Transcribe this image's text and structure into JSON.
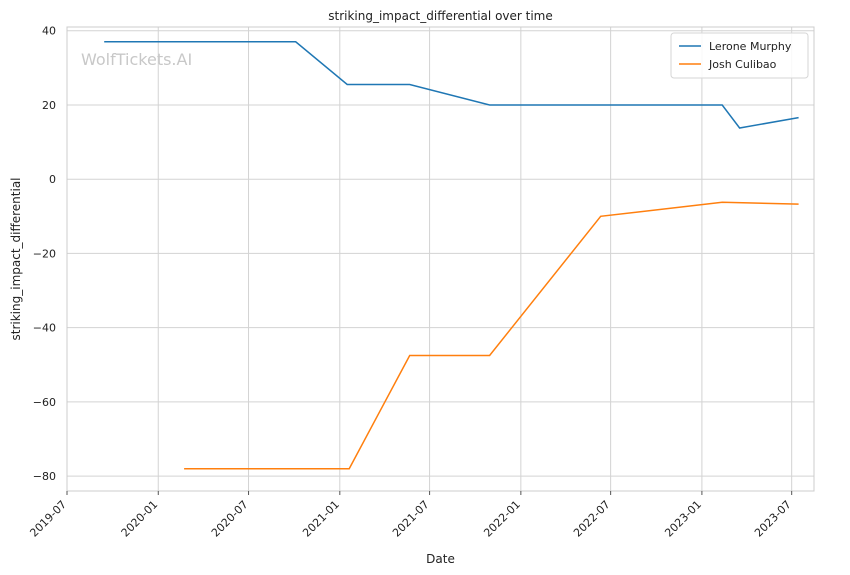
{
  "chart_data": {
    "type": "line",
    "title": "striking_impact_differential over time",
    "xlabel": "Date",
    "ylabel": "striking_impact_differential",
    "watermark": "WolfTickets.AI",
    "ylim": [
      -84,
      41
    ],
    "xlim": [
      "2019-07-01",
      "2023-08-15"
    ],
    "x_ticks": [
      "2019-07",
      "2020-01",
      "2020-07",
      "2021-01",
      "2021-07",
      "2022-01",
      "2022-07",
      "2023-01",
      "2023-07"
    ],
    "y_ticks": [
      -80,
      -60,
      -40,
      -20,
      0,
      20,
      40
    ],
    "grid": true,
    "legend_position": "top-right",
    "series": [
      {
        "name": "Lerone Murphy",
        "color": "#1f77b4",
        "points": [
          {
            "x": "2019-09-14",
            "y": 37
          },
          {
            "x": "2020-10-04",
            "y": 37
          },
          {
            "x": "2021-01-16",
            "y": 25.5
          },
          {
            "x": "2021-05-22",
            "y": 25.5
          },
          {
            "x": "2021-10-30",
            "y": 20
          },
          {
            "x": "2023-02-11",
            "y": 20
          },
          {
            "x": "2023-03-18",
            "y": 13.8
          },
          {
            "x": "2023-07-15",
            "y": 16.6
          }
        ]
      },
      {
        "name": "Josh Culibao",
        "color": "#ff7f0e",
        "points": [
          {
            "x": "2020-02-22",
            "y": -78
          },
          {
            "x": "2021-01-20",
            "y": -78
          },
          {
            "x": "2021-05-22",
            "y": -47.5
          },
          {
            "x": "2021-10-30",
            "y": -47.5
          },
          {
            "x": "2022-06-11",
            "y": -10
          },
          {
            "x": "2023-02-11",
            "y": -6.2
          },
          {
            "x": "2023-07-15",
            "y": -6.7
          }
        ]
      }
    ]
  }
}
